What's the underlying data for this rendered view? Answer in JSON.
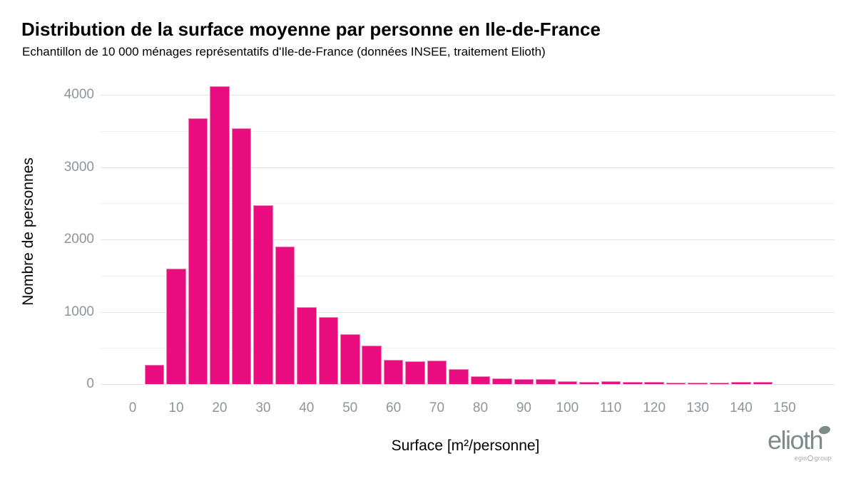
{
  "title": "Distribution de la surface moyenne par personne en Ile-de-France",
  "subtitle": "Echantillon de 10 000 ménages représentatifs d'Ile-de-France (données INSEE, traitement Elioth)",
  "chart_data": {
    "type": "bar",
    "title": "Distribution de la surface moyenne par personne en Ile-de-France",
    "subtitle": "Echantillon de 10 000 ménages représentatifs d'Ile-de-France (données INSEE, traitement Elioth)",
    "xlabel": "Surface [m²/personne]",
    "ylabel": "Nombre de personnes",
    "bin_width": 5,
    "bin_centers": [
      5,
      10,
      15,
      20,
      25,
      30,
      35,
      40,
      45,
      50,
      55,
      60,
      65,
      70,
      75,
      80,
      85,
      90,
      95,
      100,
      105,
      110,
      115,
      120,
      125,
      130,
      135,
      140,
      145
    ],
    "values": [
      265,
      1600,
      3680,
      4120,
      3540,
      2480,
      1900,
      1070,
      930,
      690,
      530,
      340,
      320,
      330,
      212,
      105,
      80,
      66,
      70,
      38,
      28,
      42,
      30,
      28,
      20,
      16,
      25,
      26,
      26
    ],
    "x_ticks": [
      0,
      10,
      20,
      30,
      40,
      50,
      60,
      70,
      80,
      90,
      100,
      110,
      120,
      130,
      140,
      150
    ],
    "y_ticks": [
      0,
      1000,
      2000,
      3000,
      4000
    ],
    "y_minor_ticks": [
      500,
      1500,
      2500,
      3500
    ],
    "xlim": [
      -7.4,
      161.5
    ],
    "ylim": [
      0,
      4230
    ],
    "grid": "horizontal major+minor, no vertical",
    "legend": "none",
    "bar_color": "#E90D7F",
    "bar_border_color": "#F47FB4",
    "axis_text_color": "#8C969C",
    "grid_major_color": "#E4E4E4",
    "grid_minor_color": "#F1F1F1"
  },
  "logo": {
    "brand": "elioth",
    "dot_icon": "ellipse-dot-icon",
    "sub_left": "egis",
    "sub_circle_icon": "egis-ring-icon",
    "sub_right": "group",
    "brand_color": "#7D8C8A"
  }
}
